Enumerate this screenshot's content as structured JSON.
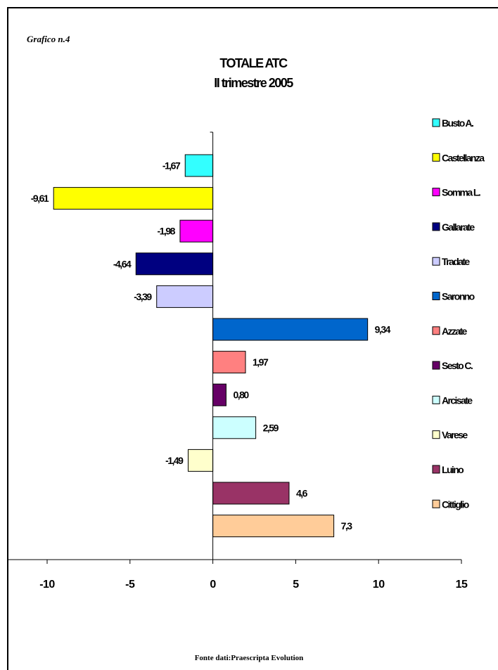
{
  "caption": "Grafico n.4",
  "source": "Fonte dati:Praescripta Evolution",
  "chart_data": {
    "type": "bar",
    "orientation": "horizontal",
    "title": "TOTALE ATC",
    "subtitle": "II trimestre 2005",
    "xlim": [
      -10,
      15
    ],
    "xticks": [
      "-10",
      "-5",
      "0",
      "5",
      "10",
      "15"
    ],
    "grid": false,
    "legend_position": "right",
    "series": [
      {
        "name": "Busto A.",
        "value": -1.67,
        "label": "-1,67",
        "color": "#33FFFF"
      },
      {
        "name": "Castellanza",
        "value": -9.61,
        "label": "-9,61",
        "color": "#FFFF00"
      },
      {
        "name": "Somma L.",
        "value": -1.98,
        "label": "-1,98",
        "color": "#FF00FF"
      },
      {
        "name": "Gallarate",
        "value": -4.64,
        "label": "-4,64",
        "color": "#000080"
      },
      {
        "name": "Tradate",
        "value": -3.39,
        "label": "-3,39",
        "color": "#CCCCFF"
      },
      {
        "name": "Saronno",
        "value": 9.34,
        "label": "9,34",
        "color": "#0066CC"
      },
      {
        "name": "Azzate",
        "value": 1.97,
        "label": "1,97",
        "color": "#FF8080"
      },
      {
        "name": "Sesto C.",
        "value": 0.8,
        "label": "0,80",
        "color": "#660066"
      },
      {
        "name": "Arcisate",
        "value": 2.59,
        "label": "2,59",
        "color": "#CCFFFF"
      },
      {
        "name": "Varese",
        "value": -1.49,
        "label": "-1,49",
        "color": "#FFFFCC"
      },
      {
        "name": "Luino",
        "value": 4.6,
        "label": "4,6",
        "color": "#993366"
      },
      {
        "name": "Cittiglio",
        "value": 7.3,
        "label": "7,3",
        "color": "#FFCC99"
      }
    ]
  }
}
